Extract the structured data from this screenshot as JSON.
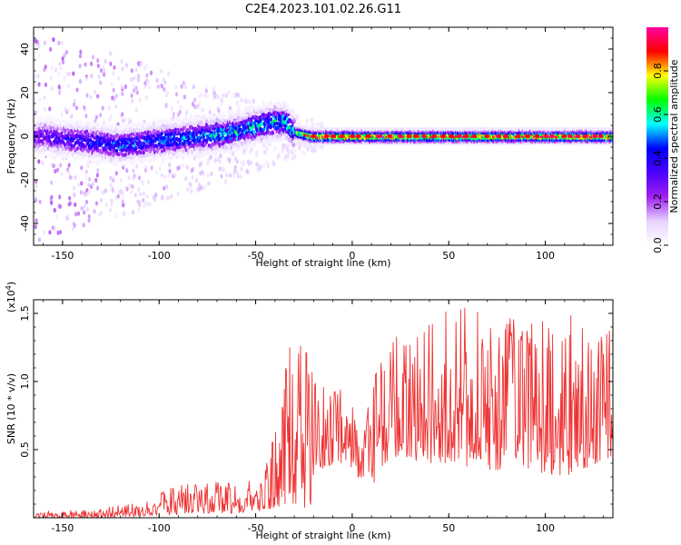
{
  "title": "C2E4.2023.101.02.26.G11",
  "chart_data": [
    {
      "type": "heatmap",
      "xlabel": "Height of straight line (km)",
      "ylabel": "Frequency (Hz)",
      "xlim": [
        -165,
        135
      ],
      "ylim": [
        -50,
        50
      ],
      "x_ticks": [
        -150,
        -100,
        -50,
        0,
        50,
        100
      ],
      "y_ticks": [
        -40,
        -20,
        0,
        20,
        40
      ],
      "colorbar": {
        "label": "Normalized spectral amplitude",
        "range": [
          0,
          1
        ],
        "ticks": [
          "0.0",
          "0.2",
          "0.4",
          "0.6",
          "0.8"
        ],
        "colormap": [
          "#ffffff",
          "#e6d2ff",
          "#a020f0",
          "#4b00ff",
          "#0000ff",
          "#00ffff",
          "#00ff00",
          "#ffff00",
          "#ff0000",
          "#ff00a0"
        ]
      },
      "ridge": [
        {
          "x": -160,
          "y": 0,
          "amp": 0.3
        },
        {
          "x": -140,
          "y": -2,
          "amp": 0.4
        },
        {
          "x": -120,
          "y": -4,
          "amp": 0.45
        },
        {
          "x": -100,
          "y": -2,
          "amp": 0.45
        },
        {
          "x": -80,
          "y": 0,
          "amp": 0.5
        },
        {
          "x": -60,
          "y": 2,
          "amp": 0.55
        },
        {
          "x": -45,
          "y": 6,
          "amp": 0.55
        },
        {
          "x": -35,
          "y": 7,
          "amp": 0.55
        },
        {
          "x": -30,
          "y": 2,
          "amp": 0.6
        },
        {
          "x": -20,
          "y": 0,
          "amp": 0.9
        },
        {
          "x": 0,
          "y": 0,
          "amp": 0.85
        },
        {
          "x": 50,
          "y": 0,
          "amp": 0.85
        },
        {
          "x": 100,
          "y": 0,
          "amp": 0.85
        },
        {
          "x": 135,
          "y": 0,
          "amp": 0.85
        }
      ]
    },
    {
      "type": "line",
      "xlabel": "Height of straight line (km)",
      "ylabel": "SNR (10 * v/v)",
      "y_multiplier": "(x10",
      "y_multiplier_exp": "4",
      "xlim": [
        -165,
        135
      ],
      "ylim": [
        0,
        1.6
      ],
      "x_ticks": [
        -150,
        -100,
        -50,
        0,
        50,
        100
      ],
      "y_ticks": [
        0.5,
        1.0,
        1.5
      ],
      "y_tick_labels": [
        "0.5",
        "1.0",
        "1.5"
      ],
      "color": "#ee3333",
      "envelope": [
        {
          "x": -165,
          "low": 0.0,
          "high": 0.04
        },
        {
          "x": -130,
          "low": 0.0,
          "high": 0.07
        },
        {
          "x": -110,
          "low": 0.01,
          "high": 0.12
        },
        {
          "x": -90,
          "low": 0.02,
          "high": 0.25
        },
        {
          "x": -75,
          "low": 0.03,
          "high": 0.3
        },
        {
          "x": -60,
          "low": 0.03,
          "high": 0.25
        },
        {
          "x": -45,
          "low": 0.05,
          "high": 0.35
        },
        {
          "x": -32,
          "low": 0.08,
          "high": 1.3
        },
        {
          "x": -22,
          "low": 0.05,
          "high": 1.25
        },
        {
          "x": -18,
          "low": 0.35,
          "high": 0.95
        },
        {
          "x": -5,
          "low": 0.4,
          "high": 1.0
        },
        {
          "x": 10,
          "low": 0.2,
          "high": 1.05
        },
        {
          "x": 20,
          "low": 0.45,
          "high": 1.3
        },
        {
          "x": 35,
          "low": 0.4,
          "high": 1.45
        },
        {
          "x": 50,
          "low": 0.4,
          "high": 1.58
        },
        {
          "x": 70,
          "low": 0.35,
          "high": 1.5
        },
        {
          "x": 90,
          "low": 0.35,
          "high": 1.5
        },
        {
          "x": 110,
          "low": 0.3,
          "high": 1.5
        },
        {
          "x": 135,
          "low": 0.45,
          "high": 1.4
        }
      ]
    }
  ]
}
